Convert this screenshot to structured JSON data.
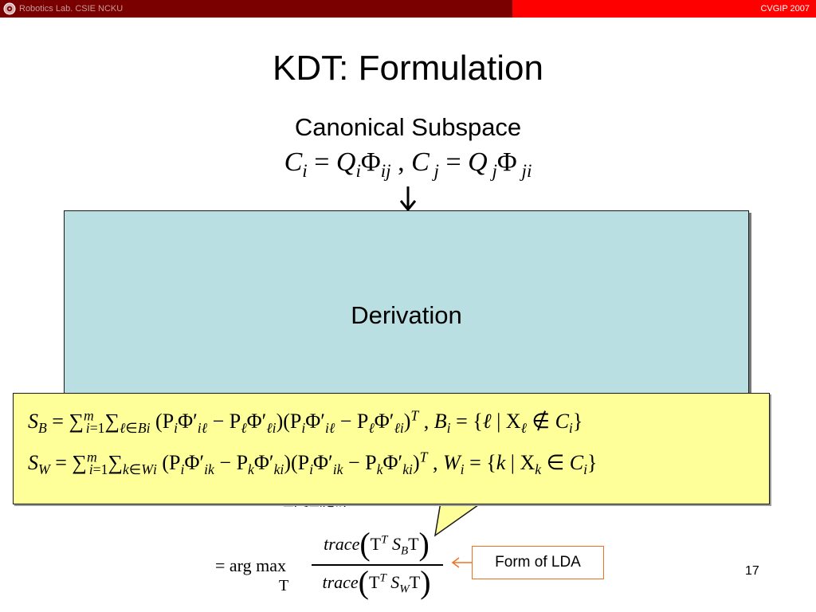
{
  "header": {
    "lab_name": "Robotics Lab. CSIE NCKU",
    "conference": "CVGIP 2007",
    "logo_icon": "seal-logo-icon",
    "left_color": "#7a0000",
    "right_color": "#ff0000"
  },
  "slide": {
    "title": "KDT: Formulation",
    "subtitle": "Canonical Subspace",
    "canonical_formula": "C_i = Q_i Φ_ij , C_j = Q_j Φ_ji",
    "derivation_label": "Derivation",
    "derivation_color": "#b9dfe3",
    "sb_formula": "S_B = Σ_{i=1}^m Σ_{ℓ∈B_i} (P_i Φ'_{iℓ} − P_ℓ Φ'_{ℓi})(P_i Φ'_{iℓ} − P_ℓ Φ'_{ℓi})^T , B_i = {ℓ | X_ℓ ∉ C_i}",
    "sw_formula": "S_W = Σ_{i=1}^m Σ_{k∈W_i} (P_i Φ'_{ik} − P_k Φ'_{ki})(P_i Φ'_{ik} − P_k Φ'_{ki})^T , W_i = {k | X_k ∈ C_i}",
    "objective_formula": "= arg max_T trace(T^T S_B T) / trace(T^T S_W T)",
    "callout_label": "Form of LDA",
    "callout_color": "#f07020",
    "page_number": "17"
  }
}
